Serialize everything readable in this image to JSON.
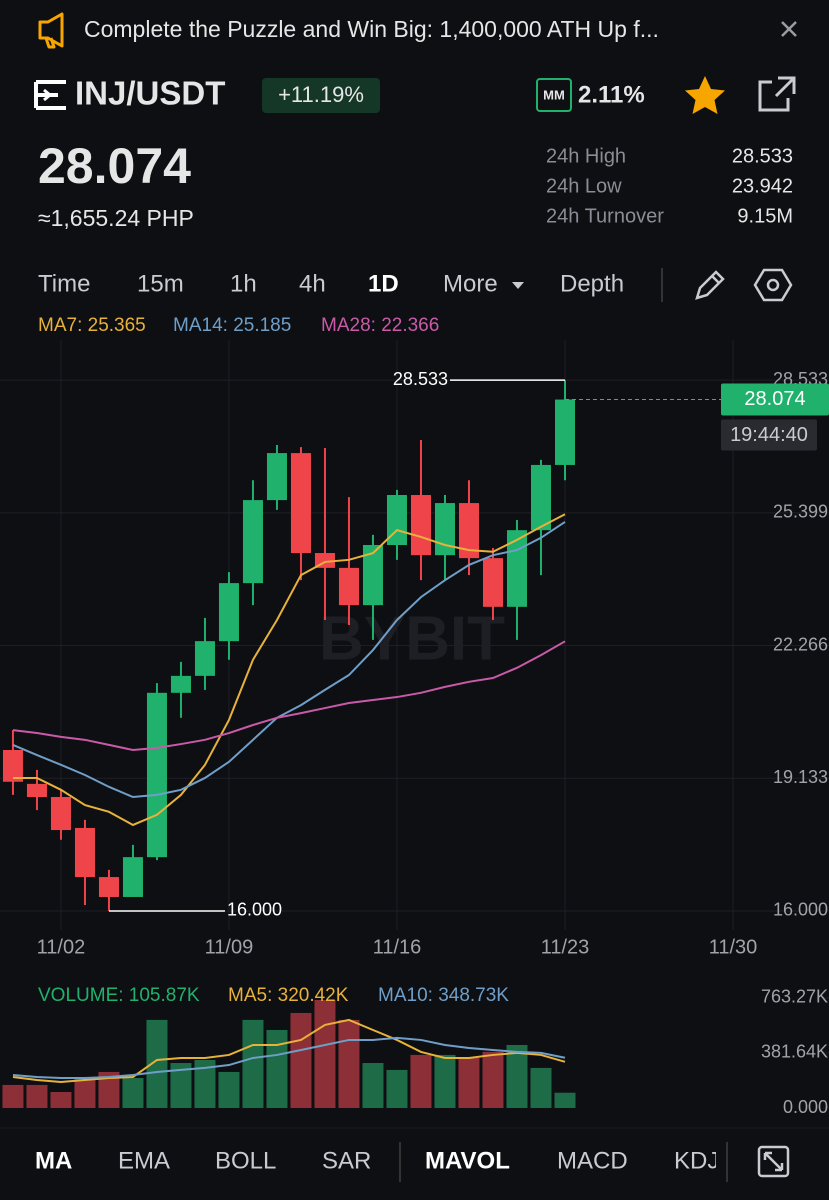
{
  "banner": {
    "text": "Complete the Puzzle and Win Big: 1,400,000 ATH Up f..."
  },
  "header": {
    "pair": "INJ/USDT",
    "change": "+11.19%",
    "mm_icon": "MM",
    "mm": "2.11%",
    "price": "28.074",
    "fiat": "≈1,655.24 PHP",
    "stats": [
      {
        "label": "24h High",
        "value": "28.533"
      },
      {
        "label": "24h Low",
        "value": "23.942"
      },
      {
        "label": "24h Turnover",
        "value": "9.15M"
      }
    ]
  },
  "tabs": {
    "intervals": [
      "Time",
      "15m",
      "1h",
      "4h",
      "1D",
      "More",
      "Depth"
    ]
  },
  "indicators": [
    "MA",
    "EMA",
    "BOLL",
    "SAR",
    "MAVOL",
    "MACD",
    "KDJ"
  ],
  "chart_data": [
    {
      "type": "candlestick",
      "watermark": "BYBIT",
      "x": [
        0,
        1,
        2,
        3,
        4,
        5,
        6,
        7,
        8,
        9,
        10,
        11,
        12,
        13,
        14,
        15,
        16,
        17,
        18,
        19,
        20,
        21,
        22,
        23
      ],
      "open": [
        19.8,
        19.0,
        18.69,
        17.96,
        16.8,
        16.33,
        17.27,
        21.15,
        21.55,
        22.37,
        23.74,
        25.7,
        26.81,
        24.45,
        24.1,
        23.22,
        24.64,
        25.82,
        24.4,
        25.63,
        24.33,
        23.18,
        24.99,
        26.53
      ],
      "high": [
        20.27,
        19.33,
        18.86,
        18.15,
        16.97,
        17.56,
        21.38,
        21.88,
        22.92,
        24.0,
        26.17,
        27.0,
        26.95,
        26.93,
        25.77,
        24.88,
        25.94,
        27.12,
        25.82,
        26.17,
        24.57,
        25.23,
        26.65,
        28.533
      ],
      "low": [
        18.74,
        18.38,
        17.68,
        16.14,
        16.0,
        16.33,
        17.2,
        20.56,
        21.22,
        21.93,
        23.22,
        25.47,
        23.81,
        22.87,
        22.75,
        22.4,
        24.29,
        23.81,
        23.81,
        23.93,
        22.87,
        22.4,
        23.93,
        26.17
      ],
      "close": [
        19.05,
        18.69,
        17.91,
        16.8,
        16.33,
        17.27,
        21.15,
        21.55,
        22.37,
        23.74,
        25.7,
        26.81,
        24.45,
        24.1,
        23.22,
        24.64,
        25.82,
        24.4,
        25.63,
        24.33,
        23.18,
        24.99,
        26.53,
        28.074
      ],
      "up_color": "#20b26c",
      "down_color": "#ef454a",
      "series": [
        {
          "name": "MA7: 25.365",
          "color": "#e8b23a",
          "values": [
            19.14,
            19.14,
            18.86,
            18.5,
            18.34,
            18.03,
            18.27,
            18.74,
            19.45,
            20.51,
            21.93,
            22.87,
            23.93,
            24.24,
            24.29,
            24.45,
            24.99,
            24.83,
            24.64,
            24.52,
            24.48,
            24.76,
            25.07,
            25.365
          ]
        },
        {
          "name": "MA14: 25.185",
          "color": "#6f9fc8",
          "values": [
            19.92,
            19.68,
            19.45,
            19.21,
            18.93,
            18.69,
            18.74,
            18.86,
            19.14,
            19.52,
            20.04,
            20.56,
            20.86,
            21.22,
            21.57,
            22.16,
            22.87,
            23.41,
            23.81,
            24.17,
            24.4,
            24.52,
            24.81,
            25.185
          ]
        },
        {
          "name": "MA28: 22.366",
          "color": "#c95aa8",
          "values": [
            20.27,
            20.2,
            20.11,
            20.04,
            19.92,
            19.8,
            19.85,
            19.94,
            20.04,
            20.2,
            20.39,
            20.56,
            20.67,
            20.79,
            20.91,
            20.98,
            21.05,
            21.15,
            21.29,
            21.41,
            21.5,
            21.74,
            22.04,
            22.366
          ]
        }
      ],
      "high_label": "28.533",
      "low_label": "16.000",
      "countdown": "19:44:40",
      "xlim": [
        -0.54,
        34
      ],
      "xticks": [
        {
          "value": 2,
          "label": "11/02"
        },
        {
          "value": 9,
          "label": "11/09"
        },
        {
          "value": 16,
          "label": "11/16"
        },
        {
          "value": 23,
          "label": "11/23"
        },
        {
          "value": 30,
          "label": "11/30"
        }
      ],
      "ylim": [
        15.55,
        29.48
      ],
      "yticks": [
        {
          "value": 16,
          "label": "16.000"
        },
        19.133,
        22.266,
        25.399,
        28.533
      ],
      "grid": true
    },
    {
      "type": "bar",
      "x": [
        0,
        1,
        2,
        3,
        4,
        5,
        6,
        7,
        8,
        9,
        10,
        11,
        12,
        13,
        14,
        15,
        16,
        17,
        18,
        19,
        20,
        21,
        22,
        23
      ],
      "xlim": [
        -0.54,
        34
      ],
      "series": [
        {
          "name": "VOLUME: 105.87K",
          "color": "#20b26c",
          "up_color": "#1d6b47",
          "down_color": "#8c2f36",
          "values": [
            160,
            160,
            111,
            208,
            250,
            208,
            611,
            312,
            333,
            250,
            611,
            541,
            659,
            749,
            611,
            312,
            264,
            368,
            368,
            347,
            389,
            437,
            278,
            105.87
          ]
        },
        {
          "name": "MA5: 320.42K",
          "color": "#e8b23a",
          "values": [
            215,
            194,
            180,
            194,
            208,
            215,
            333,
            347,
            347,
            368,
            437,
            437,
            472,
            576,
            611,
            541,
            472,
            389,
            347,
            347,
            368,
            382,
            368,
            320.42
          ]
        },
        {
          "name": "MA10: 348.73K",
          "color": "#6f9fc8",
          "values": [
            229,
            215,
            208,
            208,
            215,
            229,
            250,
            264,
            278,
            298,
            347,
            368,
            402,
            437,
            472,
            472,
            486,
            472,
            437,
            416,
            402,
            389,
            382,
            348.73
          ]
        }
      ],
      "ylim": [
        0,
        853
      ],
      "yticks": [
        {
          "value": 0,
          "label": "0.000"
        },
        {
          "value": 381.64,
          "label": "381.64K"
        },
        {
          "value": 763.27,
          "label": "763.27K"
        }
      ]
    }
  ]
}
